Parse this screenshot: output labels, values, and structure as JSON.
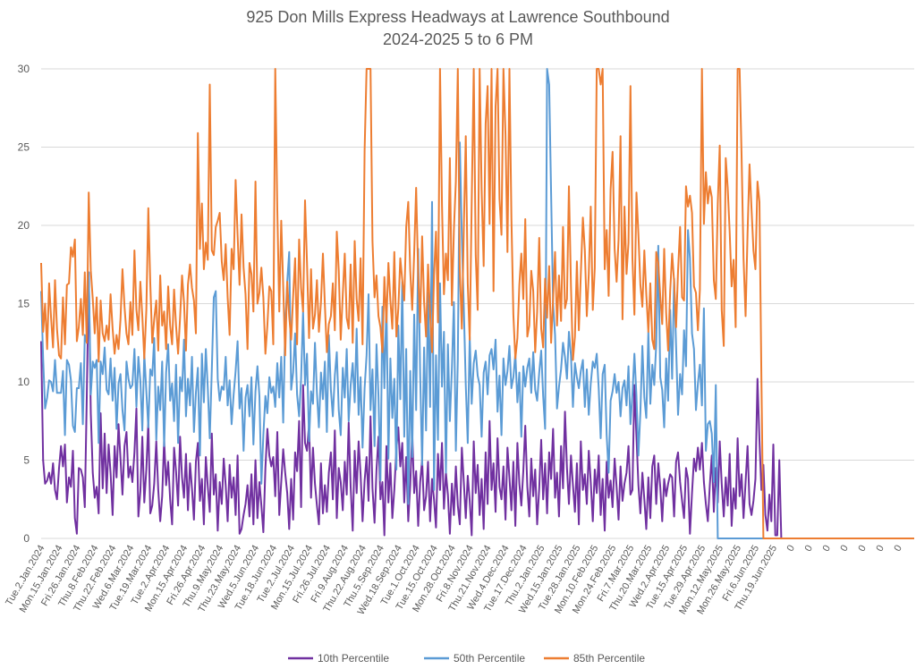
{
  "chart_data": {
    "type": "line",
    "title": "925 Don Mills Express Headways at Lawrence Southbound",
    "subtitle": "2024-2025 5 to 6 PM",
    "xlabel": "",
    "ylabel": "",
    "ylim": [
      0,
      30
    ],
    "yticks": [
      "0",
      "5",
      "10",
      "15",
      "20",
      "25",
      "30"
    ],
    "grid": "horizontal",
    "legend_position": "bottom",
    "label_interval": 9,
    "xtick_labels": [
      "Tue.2.Jan.2024",
      "Mon.15.Jan.2024",
      "Fri.26.Jan.2024",
      "Thu.8.Feb.2024",
      "Thu.22.Feb.2024",
      "Wed.6.Mar.2024",
      "Tue.19.Mar.2024",
      "Tue.2.Apr.2024",
      "Mon.15.Apr.2024",
      "Fri.26.Apr.2024",
      "Thu.9.May.2024",
      "Thu.23.May.2024",
      "Wed.5.Jun.2024",
      "Tue.18.Jun.2024",
      "Tue.2.Jul.2024",
      "Mon.15.Jul.2024",
      "Fri.26.Jul.2024",
      "Fri.9.Aug.2024",
      "Thu.22.Aug.2024",
      "Thu.5.Sep.2024",
      "Wed.18.Sep.2024",
      "Tue.1.Oct.2024",
      "Tue.15.Oct.2024",
      "Mon.28.Oct.2024",
      "Fri.8.Nov.2024",
      "Thu.21.Nov.2024",
      "Wed.4.Dec.2024",
      "Tue.17.Dec.2024",
      "Thu.2.Jan.2025",
      "Wed.15.Jan.2025",
      "Tue.28.Jan.2025",
      "Mon.10.Feb.2025",
      "Mon.24.Feb.2025",
      "Fri.7.Mar.2025",
      "Thu.20.Mar.2025",
      "Wed.2.Apr.2025",
      "Tue.15.Apr.2025",
      "Tue.29.Apr.2025",
      "Mon.12.May.2025",
      "Mon.26.May.2025",
      "Fri.6.Jun.2025",
      "Thu.19.Jun.2025",
      "0",
      "0",
      "0",
      "0",
      "0",
      "0",
      "0"
    ],
    "total_points": 441,
    "series": [
      {
        "name": "10th Percentile",
        "color": "#7030a0",
        "values": [
          12.6,
          5,
          3.5,
          3.7,
          4.2,
          3.5,
          4.8,
          3.1,
          2.5,
          4.5,
          5.9,
          4.6,
          6,
          2.3,
          3.9,
          3.3,
          5.6,
          1.3,
          0.3,
          4.5,
          4.4,
          3.9,
          2,
          9,
          17,
          8,
          4.2,
          2.6,
          3.3,
          1.6,
          8,
          3.2,
          6.7,
          2.9,
          6,
          4.2,
          1.5,
          5.9,
          3.9,
          7.3,
          5.1,
          2.8,
          5.9,
          6.8,
          3.9,
          4.6,
          3.6,
          5.5,
          8.3,
          1.4,
          3,
          6.5,
          2.3,
          4.4,
          7.5,
          1.6,
          2.1,
          3.5,
          6.2,
          3.1,
          1.1,
          2.7,
          6.3,
          3.4,
          4.9,
          2.5,
          0.9,
          5.8,
          4.3,
          2.1,
          6.5,
          3.9,
          2.6,
          5.4,
          1.8,
          4.8,
          3.2,
          1.2,
          4.9,
          6.1,
          2.4,
          3.8,
          0.9,
          5.2,
          3.3,
          1.7,
          6.7,
          2.8,
          4.1,
          0.5,
          3.6,
          2.2,
          5.1,
          3.4,
          1.1,
          4.7,
          2.6,
          3.9,
          1.5,
          5.3,
          0.3,
          0.6,
          1.5,
          2.2,
          3.4,
          1.4,
          4.1,
          0.9,
          5,
          1.3,
          3.6,
          2.1,
          0.4,
          4.5,
          7,
          5.3,
          4.6,
          5.2,
          2.7,
          6.8,
          1.5,
          3.6,
          5.7,
          4.2,
          2.9,
          0.6,
          3.8,
          1.2,
          5.5,
          4.3,
          7.5,
          2,
          9.8,
          6.1,
          5.6,
          7.3,
          2.6,
          5.8,
          3.5,
          2.1,
          0.9,
          4.8,
          1.6,
          3.4,
          1.7,
          4.2,
          5.5,
          2.5,
          6.9,
          1.3,
          4.5,
          3.6,
          1.8,
          4.9,
          2.8,
          7.4,
          3.3,
          0.5,
          5.6,
          2.9,
          6.2,
          4.1,
          1.1,
          3.7,
          5.2,
          2.4,
          7.8,
          3.2,
          1,
          4.4,
          6.5,
          2.5,
          3.6,
          0.2,
          5.9,
          2.3,
          4.8,
          1.3,
          3.1,
          5.7,
          7.1,
          4.6,
          6.1,
          2.3,
          5.2,
          1.1,
          3.4,
          6.8,
          2.9,
          4.3,
          0.8,
          3.6,
          5,
          1.8,
          2.7,
          4.9,
          1.1,
          3.8,
          2.5,
          0.7,
          5.4,
          3.1,
          6.1,
          1.9,
          4.2,
          2.8,
          0.3,
          3.5,
          1.5,
          4.6,
          2.1,
          0.9,
          5.8,
          3.6,
          1.3,
          4,
          2.4,
          0.2,
          6.2,
          2.9,
          4.7,
          1.5,
          3.8,
          0.6,
          5.5,
          2.2,
          7.5,
          3.1,
          4.8,
          1.7,
          6.4,
          3.3,
          2.5,
          4.6,
          1.2,
          5.8,
          3.9,
          1.8,
          4.9,
          0.8,
          6.1,
          3.5,
          2.1,
          4.3,
          7.2,
          3.3,
          1.4,
          5.1,
          2.7,
          4.4,
          0.9,
          3.2,
          6.3,
          2.5,
          4.8,
          1.6,
          5.5,
          3.8,
          7,
          2.6,
          4.2,
          1.4,
          5.9,
          3.2,
          8.1,
          4.5,
          2.2,
          5.3,
          3.4,
          1.7,
          4.8,
          0.9,
          6.2,
          3.1,
          4.1,
          2.2,
          5.6,
          3.6,
          1.1,
          4.4,
          2.9,
          5.3,
          1.5,
          3.8,
          0.5,
          4.9,
          2.6,
          3.7,
          2,
          5.1,
          3.3,
          1.2,
          4.6,
          2.4,
          3.5,
          4.2,
          5.9,
          2.8,
          3.1,
          9.8,
          6.5,
          3.4,
          1.6,
          4.2,
          2.5,
          0.6,
          3.9,
          1.3,
          4.6,
          5.3,
          2.2,
          4.8,
          3.3,
          1.1,
          3.8,
          2.7,
          3.5,
          4.1,
          3.9,
          1.4,
          4.9,
          5.5,
          3.6,
          2.4,
          1.3,
          4.5,
          3.8,
          0.3,
          2.9,
          5.1,
          4.3,
          5.8,
          4.4,
          6.1,
          3.6,
          2.2,
          1.1,
          3.4,
          5.3,
          1.7,
          4.5,
          2.3,
          6.2,
          3.5,
          1.4,
          3.9,
          2.1,
          5.4,
          0.8,
          3.2,
          1.9,
          6.4,
          2.7,
          4.1,
          1.3,
          3.6,
          5.9,
          2.2,
          1.5,
          2.4,
          3.8,
          10.2,
          6.3,
          3.1,
          4.7,
          1.5,
          0.5,
          2.8,
          1.1,
          6,
          0.2,
          0.2,
          5
        ],
        "tail_zero_count": 55
      },
      {
        "name": "50th Percentile",
        "color": "#5b9bd5",
        "values": [
          15.8,
          11.5,
          8.3,
          9,
          10.1,
          10,
          9.4,
          11.4,
          9.3,
          9.3,
          9.3,
          10.7,
          6.6,
          11.4,
          11.1,
          10.1,
          7.2,
          6.8,
          9.6,
          9.6,
          11.2,
          7.3,
          13,
          12.5,
          17,
          9.2,
          11.3,
          10.9,
          11.4,
          6.1,
          11.3,
          10.5,
          12.2,
          9.5,
          9.2,
          11.5,
          8.8,
          10.9,
          7,
          9.9,
          10.5,
          8.2,
          6.9,
          11.3,
          10.2,
          9.6,
          9.8,
          12.1,
          8.4,
          11.6,
          10.1,
          6.9,
          11.8,
          9.4,
          7.1,
          10.8,
          10.4,
          12.8,
          6.3,
          9.7,
          8.2,
          11.3,
          5.9,
          10.6,
          12.4,
          8.8,
          9.9,
          7.5,
          11.1,
          6.1,
          10.3,
          9.4,
          12.7,
          7.8,
          10.2,
          8.5,
          11.6,
          6.8,
          9.3,
          10.9,
          5.3,
          11.8,
          8.7,
          12.1,
          9.6,
          6.4,
          10.8,
          15.4,
          15.8,
          10.2,
          8.8,
          9.7,
          9.5,
          11.6,
          8.5,
          10.1,
          7.3,
          9.2,
          10.7,
          12.6,
          8.3,
          9.6,
          5.6,
          9,
          9.8,
          7.8,
          10.3,
          6,
          9.4,
          11,
          9.1,
          3.5,
          6.6,
          9.1,
          8,
          10.3,
          9.3,
          9.7,
          8.4,
          11.2,
          9,
          11.6,
          7.4,
          13.5,
          16.4,
          18.3,
          9.5,
          10.6,
          13.1,
          9.2,
          7.8,
          10.2,
          14.5,
          9.8,
          11.8,
          6.2,
          9.4,
          8.6,
          12.5,
          9.3,
          7.1,
          10.6,
          8.9,
          11.3,
          6.8,
          13,
          9.5,
          7.8,
          10.4,
          11.9,
          8.2,
          6.6,
          10.9,
          9,
          12.1,
          7.5,
          9.8,
          11.2,
          8.7,
          13.4,
          7.9,
          10.3,
          5.8,
          9.6,
          11.7,
          15.6,
          8.2,
          10.8,
          5.9,
          12.4,
          9.1,
          3.7,
          14.8,
          9.6,
          15.2,
          5.1,
          11.5,
          7.7,
          10.2,
          4.4,
          13.6,
          8.9,
          16.4,
          6.5,
          12.1,
          2.2,
          10.7,
          5.2,
          14.3,
          8.2,
          18.5,
          10.5,
          4.7,
          12.2,
          6.9,
          15.7,
          8.4,
          21.5,
          3.1,
          11.7,
          6.3,
          16.3,
          9.7,
          13.2,
          4.2,
          12.4,
          7.5,
          10.9,
          15.1,
          5.6,
          11.4,
          25.3,
          19.2,
          14.7,
          9.8,
          6.1,
          12.9,
          8.6,
          11.2,
          12,
          10.4,
          9.8,
          6.5,
          10.6,
          11.3,
          9.2,
          11.7,
          12.1,
          10.8,
          12.7,
          8.1,
          10.4,
          6.6,
          11.5,
          9.8,
          10.7,
          12.3,
          9.6,
          10.3,
          11.8,
          8.7,
          10.6,
          6.5,
          11,
          9.7,
          10.9,
          11.5,
          9.3,
          11.9,
          9.5,
          8.8,
          10.6,
          12,
          9.1,
          7,
          30,
          29,
          22,
          15,
          13,
          8.3,
          9.7,
          10.8,
          12.5,
          11.6,
          10.2,
          13.2,
          11.7,
          8.4,
          11.2,
          10.3,
          9.6,
          10.7,
          11.4,
          8.4,
          10.8,
          7.9,
          9.9,
          11.3,
          10.9,
          11.8,
          9.6,
          6.4,
          10.5,
          11.1,
          6.6,
          4.2,
          8.8,
          9.4,
          10.5,
          9.3,
          10,
          7.8,
          9.6,
          10.1,
          8.5,
          11,
          7.3,
          9.2,
          11.8,
          9.1,
          5.3,
          8.1,
          12.3,
          9,
          7.7,
          13.2,
          8.6,
          11.1,
          9.8,
          12.4,
          18.7,
          10.3,
          9.5,
          7.1,
          11.5,
          8.8,
          14.6,
          10.2,
          16.6,
          12.3,
          7.9,
          10.5,
          9.2,
          13.3,
          11,
          19.7,
          17.9,
          13.1,
          12.1,
          8.2,
          9.9,
          11.1,
          8.5,
          14.7,
          5.6,
          7.3,
          7.5,
          6.7,
          3.6,
          9.8
        ],
        "tail_zero_count": 55
      },
      {
        "name": "85th Percentile",
        "color": "#ed7d31",
        "values": [
          17.6,
          13.2,
          15,
          12.1,
          16.3,
          14.1,
          12.2,
          16.5,
          13.4,
          11.7,
          11.5,
          15.4,
          12.4,
          16.2,
          16.3,
          18.6,
          18,
          19.1,
          12.6,
          13.5,
          15.3,
          13,
          17,
          12.5,
          22.1,
          17.1,
          15.3,
          13.1,
          15.4,
          11.3,
          15.2,
          13.1,
          12.6,
          13.6,
          12.7,
          15.6,
          13.4,
          11.8,
          13,
          12.1,
          14,
          17.2,
          14.8,
          13.1,
          12.4,
          15.1,
          13,
          18.4,
          14.6,
          13.3,
          16.4,
          14.2,
          11.5,
          14.6,
          21.1,
          16.3,
          12.5,
          14,
          15.2,
          12,
          16.8,
          13.6,
          14.5,
          12.1,
          16.1,
          13.6,
          12.4,
          15.9,
          13.6,
          11.8,
          14.1,
          16.8,
          15.1,
          12,
          16.2,
          17.5,
          16,
          15.2,
          13.1,
          25.9,
          18.5,
          21.4,
          17.2,
          18.9,
          17.8,
          29,
          18.4,
          18.1,
          19.9,
          20.3,
          20.8,
          17.7,
          16.5,
          18.8,
          15.4,
          13,
          18.5,
          17.2,
          22.9,
          19.4,
          16.2,
          20.7,
          17.3,
          15.6,
          12.1,
          17.6,
          16.9,
          14.5,
          22.8,
          15,
          15.7,
          17.3,
          15.4,
          11.8,
          13.6,
          16.1,
          15.8,
          12.4,
          30,
          21,
          14.5,
          20.3,
          16.1,
          11.7,
          16.4,
          14.2,
          12.7,
          15.5,
          17.9,
          12.4,
          19.1,
          16,
          14.5,
          21.6,
          17.6,
          12.8,
          17.2,
          13.4,
          14.3,
          16.5,
          13.2,
          15.1,
          18.2,
          14.9,
          11.9,
          13.7,
          14.2,
          16.3,
          13.3,
          19.6,
          17.1,
          12.7,
          15.6,
          18.2,
          14.1,
          13.4,
          17.5,
          12.5,
          19,
          15.3,
          13.9,
          17.9,
          12.4,
          24.8,
          30,
          30,
          30,
          19,
          15.4,
          16.8,
          14.2,
          13.5,
          11.9,
          16.7,
          13.8,
          17.6,
          15.2,
          13.4,
          18.3,
          12.9,
          14.7,
          17.9,
          16.5,
          15.2,
          19.9,
          21.5,
          17.1,
          14.6,
          18.2,
          22.4,
          16.8,
          13.8,
          19.3,
          15.1,
          12.9,
          17.5,
          14.4,
          11.9,
          16.8,
          19.6,
          13.8,
          30,
          21.3,
          15.6,
          18.2,
          16.5,
          24.3,
          14.9,
          19.7,
          22.8,
          30,
          17.2,
          13.4,
          19.8,
          25.7,
          16.3,
          12.7,
          21.4,
          30,
          18.1,
          14.6,
          30,
          22.3,
          17.4,
          26.5,
          28.9,
          20.1,
          30,
          15.8,
          27.6,
          30,
          21.7,
          19.4,
          30,
          25.8,
          18.3,
          30,
          20.5,
          14.3,
          11.5,
          12.8,
          16.2,
          18.2,
          15.3,
          20.4,
          12.9,
          13.6,
          17.1,
          15.8,
          11.9,
          14.5,
          19.2,
          13.4,
          12.2,
          16.6,
          14.1,
          17.4,
          12.5,
          15.3,
          18.3,
          13.6,
          16.8,
          13.9,
          19.9,
          14.7,
          15.3,
          22.5,
          16.1,
          11.4,
          12.9,
          17.7,
          13.3,
          16.9,
          20.5,
          18.4,
          14.2,
          16.9,
          21.2,
          14.6,
          17.3,
          30,
          30,
          29,
          30,
          17.2,
          19.7,
          15.5,
          22.3,
          24.7,
          18.5,
          16.4,
          19.1,
          25.7,
          14,
          21.2,
          16.9,
          18.9,
          28.9,
          17.9,
          14.3,
          22.1,
          19.4,
          16.2,
          14.8,
          18.4,
          15.6,
          13.2,
          16.3,
          12.7,
          12.1,
          18.3,
          17.6,
          15.5,
          13.7,
          18.5,
          14.4,
          12,
          15.8,
          18.2,
          16.4,
          13.5,
          17.1,
          19.9,
          15.4,
          15.2,
          22.5,
          21.2,
          21.9,
          20.8,
          16.1,
          15.7,
          13.3,
          15.9,
          30,
          20.1,
          23.4,
          21.4,
          22.5,
          21.8,
          16.5,
          15.3,
          21.4,
          25.1,
          14.6,
          12.3,
          24.3,
          22.4,
          19.6,
          16.1,
          17.8,
          13.5,
          30,
          30,
          24.5,
          17.9,
          14.2,
          19.5,
          23.9,
          21.1,
          18.4,
          17.2,
          22.8,
          21.5,
          10.1
        ],
        "tail_zero_count": 55
      }
    ]
  }
}
